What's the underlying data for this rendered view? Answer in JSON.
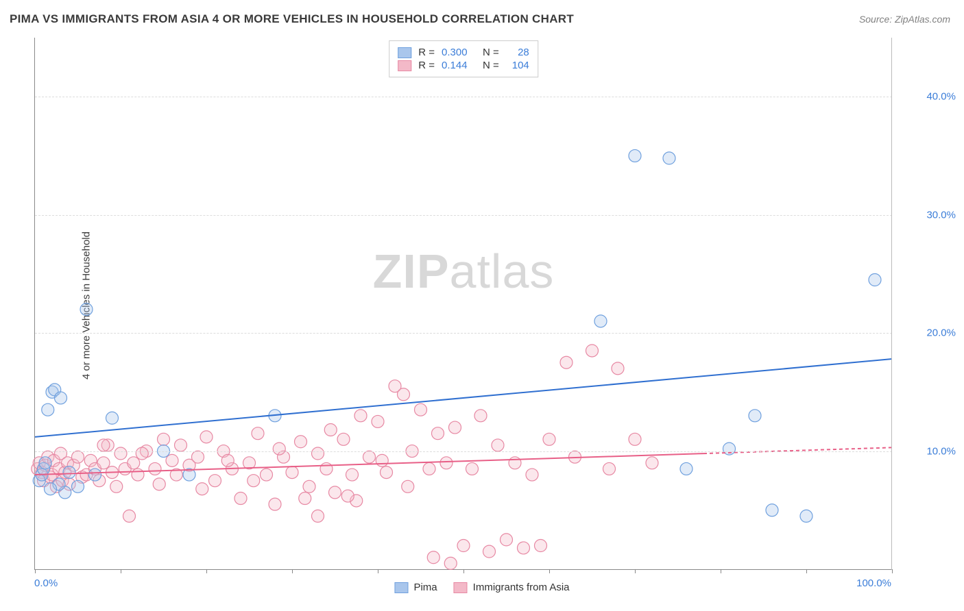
{
  "title": "PIMA VS IMMIGRANTS FROM ASIA 4 OR MORE VEHICLES IN HOUSEHOLD CORRELATION CHART",
  "source": "Source: ZipAtlas.com",
  "y_axis_label": "4 or more Vehicles in Household",
  "watermark_a": "ZIP",
  "watermark_b": "atlas",
  "chart": {
    "type": "scatter",
    "xlim": [
      0,
      100
    ],
    "ylim": [
      0,
      45
    ],
    "x_ticks": [
      0,
      10,
      20,
      30,
      40,
      50,
      60,
      70,
      80,
      90,
      100
    ],
    "x_tick_labels": {
      "0": "0.0%",
      "100": "100.0%"
    },
    "y_gridlines": [
      10,
      20,
      30,
      40
    ],
    "y_tick_labels": {
      "10": "10.0%",
      "20": "20.0%",
      "30": "30.0%",
      "40": "40.0%"
    },
    "background_color": "#ffffff",
    "grid_color": "#dcdcdc",
    "axis_color": "#888888",
    "tick_label_color": "#3b7dd8",
    "marker_radius": 9,
    "marker_stroke_width": 1.2,
    "marker_fill_opacity": 0.35,
    "series": [
      {
        "name": "Pima",
        "color_fill": "#a9c6ec",
        "color_stroke": "#6fa0de",
        "R": "0.300",
        "N": "28",
        "trend": {
          "x1": 0,
          "y1": 11.2,
          "x2": 100,
          "y2": 17.8,
          "solid_until_x": 100,
          "color": "#2f6fd0",
          "width": 2
        },
        "points": [
          [
            0.5,
            7.5
          ],
          [
            0.8,
            8.0
          ],
          [
            1.0,
            8.5
          ],
          [
            1.2,
            9.0
          ],
          [
            1.5,
            13.5
          ],
          [
            2.0,
            15.0
          ],
          [
            2.3,
            15.2
          ],
          [
            3.0,
            14.5
          ],
          [
            4.0,
            8.2
          ],
          [
            5.0,
            7.0
          ],
          [
            6.0,
            22.0
          ],
          [
            7.0,
            8.0
          ],
          [
            9.0,
            12.8
          ],
          [
            15.0,
            10.0
          ],
          [
            18.0,
            8.0
          ],
          [
            28.0,
            13.0
          ],
          [
            66.0,
            21.0
          ],
          [
            70.0,
            35.0
          ],
          [
            74.0,
            34.8
          ],
          [
            76.0,
            8.5
          ],
          [
            81.0,
            10.2
          ],
          [
            84.0,
            13.0
          ],
          [
            86.0,
            5.0
          ],
          [
            90.0,
            4.5
          ],
          [
            98.0,
            24.5
          ],
          [
            3.5,
            6.5
          ],
          [
            2.8,
            7.2
          ],
          [
            1.8,
            6.8
          ]
        ]
      },
      {
        "name": "Immigrants from Asia",
        "color_fill": "#f3b9c8",
        "color_stroke": "#e788a3",
        "R": "0.144",
        "N": "104",
        "trend": {
          "x1": 0,
          "y1": 8.0,
          "x2": 100,
          "y2": 10.3,
          "solid_until_x": 78,
          "color": "#e85f87",
          "width": 2
        },
        "points": [
          [
            0.3,
            8.5
          ],
          [
            0.5,
            9.0
          ],
          [
            0.8,
            8.2
          ],
          [
            1.0,
            7.5
          ],
          [
            1.2,
            8.8
          ],
          [
            1.5,
            9.5
          ],
          [
            1.8,
            7.8
          ],
          [
            2.0,
            8.0
          ],
          [
            2.2,
            9.2
          ],
          [
            2.5,
            7.0
          ],
          [
            2.8,
            8.5
          ],
          [
            3.0,
            9.8
          ],
          [
            3.2,
            7.5
          ],
          [
            3.5,
            8.2
          ],
          [
            3.8,
            9.0
          ],
          [
            4.0,
            7.2
          ],
          [
            4.5,
            8.8
          ],
          [
            5.0,
            9.5
          ],
          [
            5.5,
            7.8
          ],
          [
            6.0,
            8.0
          ],
          [
            6.5,
            9.2
          ],
          [
            7.0,
            8.5
          ],
          [
            7.5,
            7.5
          ],
          [
            8.0,
            9.0
          ],
          [
            8.5,
            10.5
          ],
          [
            9.0,
            8.2
          ],
          [
            9.5,
            7.0
          ],
          [
            10.0,
            9.8
          ],
          [
            10.5,
            8.5
          ],
          [
            11.0,
            4.5
          ],
          [
            11.5,
            9.0
          ],
          [
            12.0,
            8.0
          ],
          [
            13.0,
            10.0
          ],
          [
            14.0,
            8.5
          ],
          [
            15.0,
            11.0
          ],
          [
            16.0,
            9.2
          ],
          [
            17.0,
            10.5
          ],
          [
            18.0,
            8.8
          ],
          [
            19.0,
            9.5
          ],
          [
            20.0,
            11.2
          ],
          [
            21.0,
            7.5
          ],
          [
            22.0,
            10.0
          ],
          [
            23.0,
            8.5
          ],
          [
            24.0,
            6.0
          ],
          [
            25.0,
            9.0
          ],
          [
            26.0,
            11.5
          ],
          [
            27.0,
            8.0
          ],
          [
            28.0,
            5.5
          ],
          [
            29.0,
            9.5
          ],
          [
            30.0,
            8.2
          ],
          [
            31.0,
            10.8
          ],
          [
            32.0,
            7.0
          ],
          [
            33.0,
            9.8
          ],
          [
            34.0,
            8.5
          ],
          [
            35.0,
            6.5
          ],
          [
            36.0,
            11.0
          ],
          [
            37.0,
            8.0
          ],
          [
            38.0,
            13.0
          ],
          [
            39.0,
            9.5
          ],
          [
            40.0,
            12.5
          ],
          [
            41.0,
            8.2
          ],
          [
            42.0,
            15.5
          ],
          [
            43.0,
            14.8
          ],
          [
            44.0,
            10.0
          ],
          [
            45.0,
            13.5
          ],
          [
            46.0,
            8.5
          ],
          [
            46.5,
            1.0
          ],
          [
            47.0,
            11.5
          ],
          [
            48.0,
            9.0
          ],
          [
            48.5,
            0.5
          ],
          [
            49.0,
            12.0
          ],
          [
            50.0,
            2.0
          ],
          [
            51.0,
            8.5
          ],
          [
            52.0,
            13.0
          ],
          [
            53.0,
            1.5
          ],
          [
            54.0,
            10.5
          ],
          [
            55.0,
            2.5
          ],
          [
            56.0,
            9.0
          ],
          [
            57.0,
            1.8
          ],
          [
            58.0,
            8.0
          ],
          [
            59.0,
            2.0
          ],
          [
            60.0,
            11.0
          ],
          [
            62.0,
            17.5
          ],
          [
            63.0,
            9.5
          ],
          [
            65.0,
            18.5
          ],
          [
            67.0,
            8.5
          ],
          [
            68.0,
            17.0
          ],
          [
            70.0,
            11.0
          ],
          [
            72.0,
            9.0
          ],
          [
            8.0,
            10.5
          ],
          [
            12.5,
            9.8
          ],
          [
            14.5,
            7.2
          ],
          [
            16.5,
            8.0
          ],
          [
            19.5,
            6.8
          ],
          [
            22.5,
            9.2
          ],
          [
            25.5,
            7.5
          ],
          [
            28.5,
            10.2
          ],
          [
            31.5,
            6.0
          ],
          [
            34.5,
            11.8
          ],
          [
            37.5,
            5.8
          ],
          [
            40.5,
            9.2
          ],
          [
            43.5,
            7.0
          ],
          [
            33.0,
            4.5
          ],
          [
            36.5,
            6.2
          ]
        ]
      }
    ]
  },
  "legend_top": {
    "r_label": "R =",
    "n_label": "N ="
  },
  "legend_bottom": [
    {
      "label": "Pima",
      "fill": "#a9c6ec",
      "stroke": "#6fa0de"
    },
    {
      "label": "Immigrants from Asia",
      "fill": "#f3b9c8",
      "stroke": "#e788a3"
    }
  ]
}
